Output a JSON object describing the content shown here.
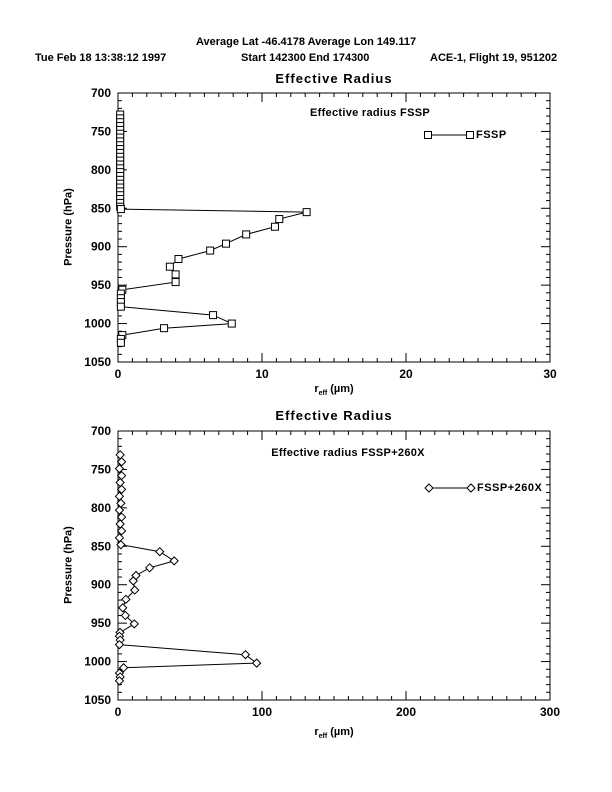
{
  "header": {
    "line1": "Average Lat -46.4178  Average Lon 149.117",
    "timestamp": "Tue Feb 18 13:38:12 1997",
    "range": "Start 142300  End 174300",
    "flight": "ACE-1, Flight 19, 951202"
  },
  "chart_data": [
    {
      "type": "line",
      "title": "Effective Radius",
      "annotation": "Effective radius FSSP",
      "xlabel": {
        "base": "r",
        "sub": "eff",
        "unit": " (µm)"
      },
      "ylabel": "Pressure (hPa)",
      "xlim": [
        0,
        30
      ],
      "ylim": [
        700,
        1050
      ],
      "y_axis_inverted": true,
      "x_major_ticks": [
        0,
        10,
        20,
        30
      ],
      "x_minor_step": 1,
      "y_major_ticks": [
        700,
        750,
        800,
        850,
        900,
        950,
        1000,
        1050
      ],
      "y_minor_step": 10,
      "legend": {
        "label": "FSSP",
        "marker": "square",
        "position": "upper right"
      },
      "series": [
        {
          "name": "FSSP",
          "marker": "square",
          "points": [
            [
              0.15,
              728
            ],
            [
              0.15,
              733
            ],
            [
              0.15,
              738
            ],
            [
              0.15,
              743
            ],
            [
              0.15,
              748
            ],
            [
              0.15,
              753
            ],
            [
              0.15,
              758
            ],
            [
              0.15,
              763
            ],
            [
              0.15,
              768
            ],
            [
              0.15,
              773
            ],
            [
              0.15,
              778
            ],
            [
              0.15,
              783
            ],
            [
              0.15,
              788
            ],
            [
              0.15,
              793
            ],
            [
              0.15,
              798
            ],
            [
              0.15,
              803
            ],
            [
              0.15,
              808
            ],
            [
              0.15,
              813
            ],
            [
              0.15,
              818
            ],
            [
              0.15,
              823
            ],
            [
              0.15,
              828
            ],
            [
              0.15,
              833
            ],
            [
              0.15,
              838
            ],
            [
              0.15,
              843
            ],
            [
              0.15,
              848
            ],
            [
              0.2,
              851
            ],
            [
              13.1,
              855
            ],
            [
              11.2,
              864
            ],
            [
              10.9,
              874
            ],
            [
              8.9,
              884
            ],
            [
              7.5,
              896
            ],
            [
              6.4,
              905
            ],
            [
              4.2,
              916
            ],
            [
              3.6,
              926
            ],
            [
              4.0,
              936
            ],
            [
              4.0,
              946
            ],
            [
              0.3,
              956
            ],
            [
              0.2,
              961
            ],
            [
              0.2,
              967
            ],
            [
              0.2,
              972
            ],
            [
              0.2,
              978
            ],
            [
              6.6,
              989
            ],
            [
              7.9,
              1000
            ],
            [
              3.2,
              1006
            ],
            [
              0.3,
              1015
            ],
            [
              0.2,
              1020
            ],
            [
              0.2,
              1025
            ]
          ]
        }
      ]
    },
    {
      "type": "line",
      "title": "Effective Radius",
      "annotation": "Effective radius FSSP+260X",
      "xlabel": {
        "base": "r",
        "sub": "eff",
        "unit": " (µm)"
      },
      "ylabel": "Pressure (hPa)",
      "xlim": [
        0,
        300
      ],
      "ylim": [
        700,
        1050
      ],
      "y_axis_inverted": true,
      "x_major_ticks": [
        0,
        100,
        200,
        300
      ],
      "x_minor_step": 10,
      "y_major_ticks": [
        700,
        750,
        800,
        850,
        900,
        950,
        1000,
        1050
      ],
      "y_minor_step": 10,
      "legend": {
        "label": "FSSP+260X",
        "marker": "diamond",
        "position": "upper right"
      },
      "series": [
        {
          "name": "FSSP+260X",
          "marker": "diamond",
          "points": [
            [
              1.5,
              731
            ],
            [
              2.5,
              740
            ],
            [
              1.0,
              749
            ],
            [
              2.5,
              758
            ],
            [
              1.5,
              767
            ],
            [
              2.5,
              776
            ],
            [
              1.0,
              785
            ],
            [
              2.0,
              794
            ],
            [
              1.0,
              803
            ],
            [
              2.5,
              812
            ],
            [
              1.5,
              821
            ],
            [
              2.5,
              830
            ],
            [
              1.0,
              839
            ],
            [
              2.0,
              848
            ],
            [
              29,
              857
            ],
            [
              39,
              869
            ],
            [
              22,
              878
            ],
            [
              12.5,
              888
            ],
            [
              10.6,
              895
            ],
            [
              11.6,
              907
            ],
            [
              5.5,
              919
            ],
            [
              3.3,
              930
            ],
            [
              5.1,
              940
            ],
            [
              11.3,
              951
            ],
            [
              1.4,
              962
            ],
            [
              1.0,
              967
            ],
            [
              1.5,
              972
            ],
            [
              1.0,
              978
            ],
            [
              88.5,
              991
            ],
            [
              96.3,
              1002
            ],
            [
              3.9,
              1008
            ],
            [
              1.0,
              1015
            ],
            [
              1.5,
              1020
            ],
            [
              1.0,
              1025
            ]
          ]
        }
      ]
    }
  ]
}
